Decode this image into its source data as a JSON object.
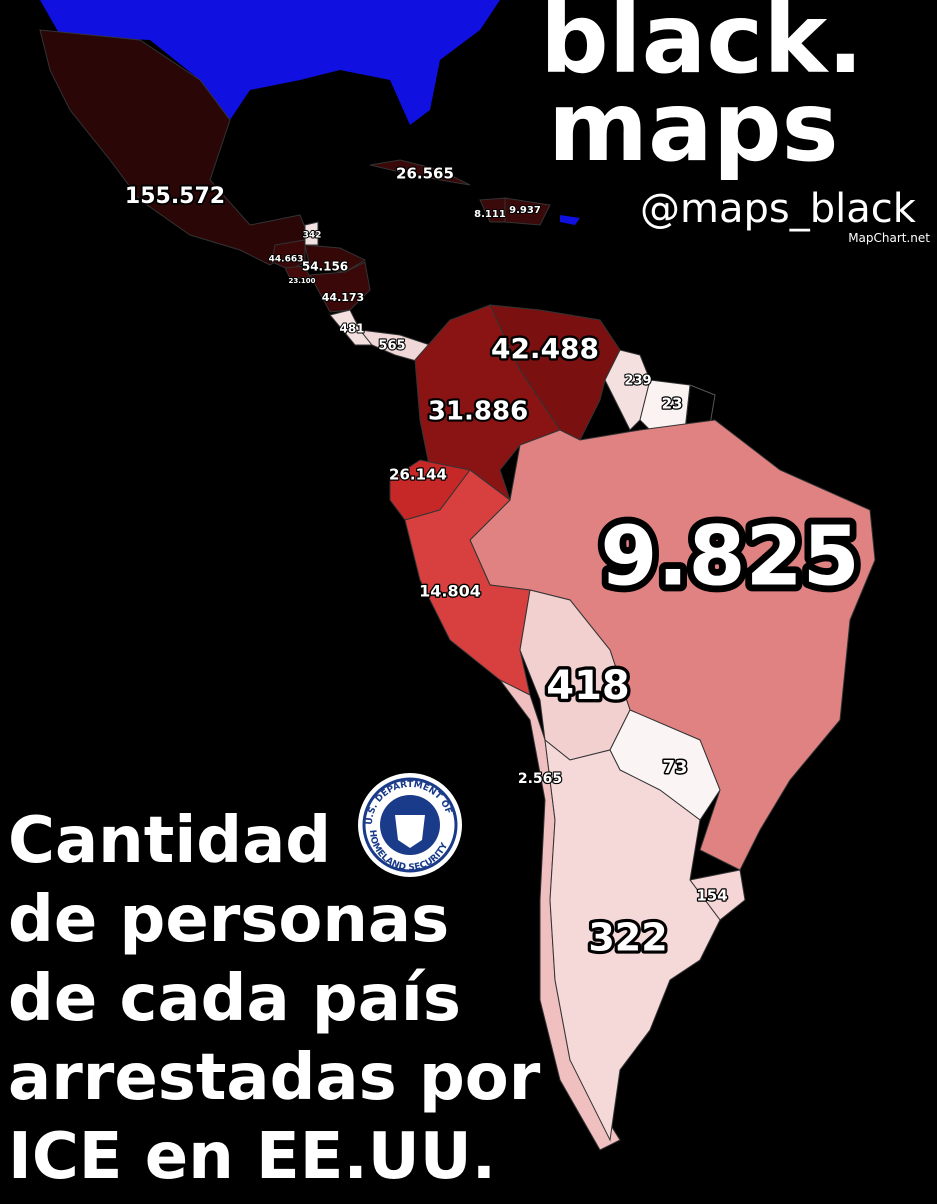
{
  "brand": {
    "line1": "black.",
    "line2": "maps",
    "handle": "@maps_black",
    "source": "MapChart.net"
  },
  "title": {
    "lines": [
      "Cantidad",
      "de personas",
      "de cada país",
      "arrestadas por",
      "ICE en EE.UU."
    ]
  },
  "seal": {
    "top": "U.S. DEPARTMENT OF",
    "bottom": "HOMELAND SECURITY"
  },
  "regions": [
    {
      "label": "155.572",
      "color": "#2a0606"
    },
    {
      "label": "26.565",
      "color": "#3a0808"
    },
    {
      "label": "8.111",
      "color": "#3a0a0a"
    },
    {
      "label": "9.937",
      "color": "#3a0a0a"
    },
    {
      "label": "342",
      "color": "#f2e2e2"
    },
    {
      "label": "44.663",
      "color": "#3a0808"
    },
    {
      "label": "54.156",
      "color": "#350707"
    },
    {
      "label": "23.100",
      "color": "#450a0a"
    },
    {
      "label": "44.173",
      "color": "#3a0808"
    },
    {
      "label": "481",
      "color": "#f5e0e0"
    },
    {
      "label": "565",
      "color": "#f0d8d8"
    },
    {
      "label": "42.488",
      "color": "#7a1010"
    },
    {
      "label": "239",
      "color": "#f5e0e0"
    },
    {
      "label": "23",
      "color": "#fbf2f2"
    },
    {
      "label": "31.886",
      "color": "#8a1414"
    },
    {
      "label": "26.144",
      "color": "#c62828"
    },
    {
      "label": "9.825",
      "color": "#e08282"
    },
    {
      "label": "14.804",
      "color": "#d84040"
    },
    {
      "label": "418",
      "color": "#f2d0d0"
    },
    {
      "label": "73",
      "color": "#fbf4f4"
    },
    {
      "label": "2.565",
      "color": "#f0c0c0"
    },
    {
      "label": "154",
      "color": "#f5d5d5"
    },
    {
      "label": "322",
      "color": "#f5d8d8"
    }
  ]
}
